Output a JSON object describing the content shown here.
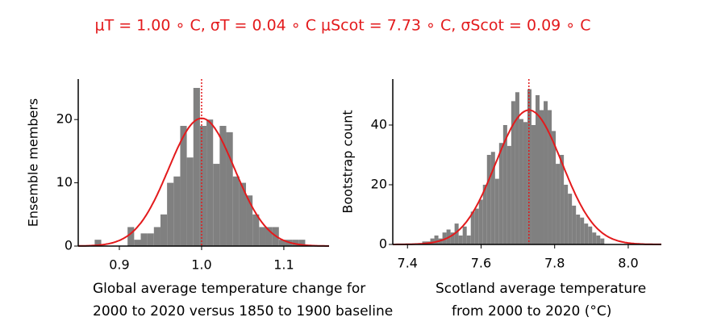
{
  "chart_data": [
    {
      "type": "histogram",
      "title": "μT = 1.00 ∘ C, σT = 0.04 ∘ C μScot = 7.73 ∘ C, σScot = 0.09 ∘ C",
      "xlabel": [
        "Global average temperature change for",
        "2000 to 2020 versus 1850 to 1900 baseline"
      ],
      "ylabel": "Ensemble members",
      "color": "#808080",
      "bins": [
        0.87,
        0.878,
        0.886,
        0.894,
        0.902,
        0.91,
        0.918,
        0.926,
        0.934,
        0.942,
        0.95,
        0.958,
        0.966,
        0.974,
        0.982,
        0.99,
        0.998,
        1.006,
        1.014,
        1.022,
        1.03,
        1.038,
        1.046,
        1.054,
        1.062,
        1.07,
        1.078,
        1.086,
        1.094,
        1.102,
        1.11,
        1.118,
        1.126
      ],
      "values": [
        1,
        0,
        0,
        0,
        0,
        3,
        1,
        2,
        2,
        3,
        5,
        10,
        11,
        19,
        14,
        25,
        19,
        20,
        13,
        19,
        18,
        11,
        10,
        8,
        5,
        3,
        3,
        3,
        1,
        1,
        1,
        1
      ],
      "fit": {
        "mean": 1.0,
        "sd": 0.04,
        "peak": 20.2,
        "color": "#e31a1c"
      },
      "xlim": [
        0.85,
        1.155
      ],
      "ylim": [
        0,
        26.4
      ],
      "xticks": [
        0.9,
        {
          "value": 1.0,
          "label": "1.0"
        },
        1.1
      ],
      "yticks": [
        0,
        10,
        20
      ]
    },
    {
      "type": "histogram",
      "xlabel": [
        "Scotland average temperature",
        "from 2000 to 2020 (°C)"
      ],
      "ylabel": "Bootstrap count",
      "color": "#808080",
      "bins": [
        7.44,
        7.451,
        7.462,
        7.473,
        7.484,
        7.495,
        7.506,
        7.517,
        7.528,
        7.539,
        7.55,
        7.561,
        7.572,
        7.583,
        7.594,
        7.605,
        7.616,
        7.627,
        7.638,
        7.649,
        7.66,
        7.671,
        7.682,
        7.693,
        7.704,
        7.715,
        7.726,
        7.737,
        7.748,
        7.759,
        7.77,
        7.781,
        7.792,
        7.803,
        7.814,
        7.825,
        7.836,
        7.847,
        7.858,
        7.869,
        7.88,
        7.891,
        7.902,
        7.913,
        7.924,
        7.935
      ],
      "values": [
        1,
        1,
        2,
        3,
        2,
        4,
        5,
        4,
        7,
        3,
        6,
        3,
        11,
        12,
        15,
        20,
        30,
        31,
        22,
        34,
        40,
        33,
        48,
        51,
        42,
        41,
        52,
        40,
        50,
        45,
        48,
        45,
        38,
        27,
        30,
        20,
        17,
        13,
        10,
        9,
        7,
        6,
        4,
        3,
        2
      ],
      "fit": {
        "mean": 7.73,
        "sd": 0.09,
        "peak": 45,
        "color": "#e31a1c"
      },
      "xlim": [
        7.36,
        8.09
      ],
      "ylim": [
        0,
        55.4
      ],
      "xticks": [
        7.4,
        7.6,
        7.8,
        {
          "value": 8.0,
          "label": "8.0"
        }
      ],
      "yticks": [
        0,
        20,
        40
      ]
    }
  ]
}
